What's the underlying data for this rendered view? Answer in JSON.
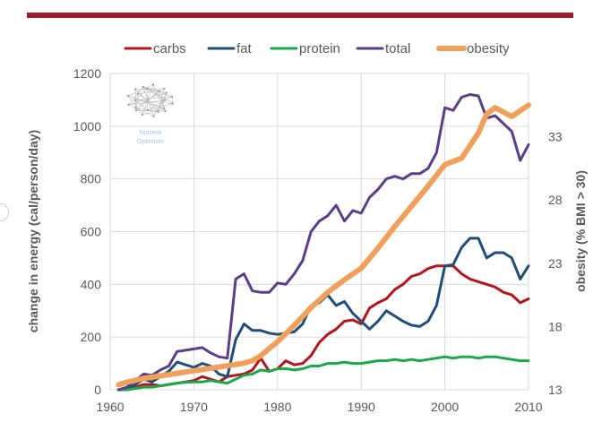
{
  "colors": {
    "top_bar": "#9b1b30",
    "carbs": "#b3161d",
    "fat": "#1f4e79",
    "protein": "#1aa84b",
    "total": "#5b3e8a",
    "obesity": "#f0a05a",
    "grid": "#d9d9d9",
    "axis_text": "#595959"
  },
  "logo": {
    "icon": "brain-network-icon",
    "line1": "Nutrient",
    "line2": "Optimiser"
  },
  "chart_data": {
    "type": "line",
    "ylabel": "change in energy (cal/person/day)",
    "y2label": "obesity (% BMI > 30)",
    "xlim": [
      1960,
      2010
    ],
    "ylim": [
      0,
      1200
    ],
    "y2lim": [
      13,
      38
    ],
    "x_ticks": [
      "1960",
      "1970",
      "1980",
      "1990",
      "2000",
      "2010"
    ],
    "y_ticks": [
      "0",
      "200",
      "400",
      "600",
      "800",
      "1000",
      "1200"
    ],
    "y2_ticks": [
      "13",
      "18",
      "23",
      "28",
      "33"
    ],
    "grid": true,
    "legend_position": "top",
    "legend": [
      "carbs",
      "fat",
      "protein",
      "total",
      "obesity"
    ],
    "series": [
      {
        "name": "carbs",
        "axis": "left",
        "x": [
          1961,
          1962,
          1963,
          1964,
          1965,
          1966,
          1967,
          1968,
          1969,
          1970,
          1971,
          1972,
          1973,
          1974,
          1975,
          1976,
          1977,
          1978,
          1979,
          1980,
          1981,
          1982,
          1983,
          1984,
          1985,
          1986,
          1987,
          1988,
          1989,
          1990,
          1991,
          1992,
          1993,
          1994,
          1995,
          1996,
          1997,
          1998,
          1999,
          2000,
          2001,
          2002,
          2003,
          2004,
          2005,
          2006,
          2007,
          2008,
          2009,
          2010
        ],
        "y": [
          0,
          5,
          10,
          20,
          20,
          15,
          20,
          25,
          30,
          35,
          50,
          40,
          30,
          50,
          55,
          60,
          75,
          120,
          70,
          80,
          110,
          95,
          100,
          130,
          180,
          210,
          230,
          260,
          265,
          250,
          310,
          330,
          345,
          380,
          400,
          430,
          440,
          460,
          470,
          470,
          470,
          440,
          420,
          410,
          400,
          390,
          370,
          360,
          330,
          345
        ]
      },
      {
        "name": "fat",
        "axis": "left",
        "x": [
          1961,
          1962,
          1963,
          1964,
          1965,
          1966,
          1967,
          1968,
          1969,
          1970,
          1971,
          1972,
          1973,
          1974,
          1975,
          1976,
          1977,
          1978,
          1979,
          1980,
          1981,
          1982,
          1983,
          1984,
          1985,
          1986,
          1987,
          1988,
          1989,
          1990,
          1991,
          1992,
          1993,
          1994,
          1995,
          1996,
          1997,
          1998,
          1999,
          2000,
          2001,
          2002,
          2003,
          2004,
          2005,
          2006,
          2007,
          2008,
          2009,
          2010
        ],
        "y": [
          0,
          5,
          20,
          40,
          30,
          50,
          70,
          105,
          95,
          85,
          100,
          90,
          60,
          50,
          190,
          250,
          225,
          225,
          215,
          210,
          215,
          220,
          250,
          320,
          330,
          360,
          320,
          335,
          290,
          260,
          230,
          260,
          300,
          280,
          260,
          245,
          240,
          260,
          320,
          470,
          475,
          540,
          575,
          575,
          500,
          520,
          520,
          500,
          420,
          470
        ]
      },
      {
        "name": "protein",
        "axis": "left",
        "x": [
          1961,
          1962,
          1963,
          1964,
          1965,
          1966,
          1967,
          1968,
          1969,
          1970,
          1971,
          1972,
          1973,
          1974,
          1975,
          1976,
          1977,
          1978,
          1979,
          1980,
          1981,
          1982,
          1983,
          1984,
          1985,
          1986,
          1987,
          1988,
          1989,
          1990,
          1991,
          1992,
          1993,
          1994,
          1995,
          1996,
          1997,
          1998,
          1999,
          2000,
          2001,
          2002,
          2003,
          2004,
          2005,
          2006,
          2007,
          2008,
          2009,
          2010
        ],
        "y": [
          0,
          0,
          5,
          10,
          10,
          15,
          20,
          25,
          28,
          30,
          30,
          35,
          30,
          25,
          40,
          55,
          60,
          75,
          70,
          80,
          80,
          75,
          80,
          90,
          90,
          100,
          100,
          105,
          100,
          100,
          105,
          110,
          110,
          115,
          110,
          115,
          110,
          115,
          120,
          125,
          120,
          125,
          125,
          120,
          125,
          125,
          120,
          115,
          110,
          110
        ]
      },
      {
        "name": "total",
        "axis": "left",
        "x": [
          1961,
          1962,
          1963,
          1964,
          1965,
          1966,
          1967,
          1968,
          1969,
          1970,
          1971,
          1972,
          1973,
          1974,
          1975,
          1976,
          1977,
          1978,
          1979,
          1980,
          1981,
          1982,
          1983,
          1984,
          1985,
          1986,
          1987,
          1988,
          1989,
          1990,
          1991,
          1992,
          1993,
          1994,
          1995,
          1996,
          1997,
          1998,
          1999,
          2000,
          2001,
          2002,
          2003,
          2004,
          2005,
          2006,
          2007,
          2008,
          2009,
          2010
        ],
        "y": [
          0,
          10,
          35,
          60,
          55,
          75,
          90,
          145,
          150,
          155,
          160,
          140,
          125,
          120,
          420,
          440,
          375,
          370,
          370,
          405,
          400,
          440,
          490,
          600,
          640,
          660,
          700,
          640,
          680,
          670,
          730,
          760,
          800,
          810,
          800,
          820,
          820,
          840,
          900,
          1070,
          1060,
          1110,
          1120,
          1115,
          1030,
          1040,
          1010,
          980,
          870,
          930
        ]
      },
      {
        "name": "obesity",
        "axis": "right",
        "x": [
          1961,
          1962,
          1964,
          1966,
          1968,
          1970,
          1972,
          1974,
          1976,
          1977,
          1978,
          1980,
          1982,
          1984,
          1986,
          1988,
          1990,
          1992,
          1994,
          1996,
          1998,
          2000,
          2002,
          2004,
          2005,
          2006,
          2008,
          2010
        ],
        "y": [
          13.4,
          13.6,
          13.9,
          14.1,
          14.3,
          14.5,
          14.7,
          14.9,
          15.1,
          15.3,
          15.7,
          16.8,
          18.1,
          19.5,
          20.7,
          21.7,
          22.6,
          24.2,
          25.9,
          27.5,
          29.1,
          30.8,
          31.3,
          33.3,
          34.8,
          35.3,
          34.6,
          35.5
        ]
      }
    ]
  }
}
